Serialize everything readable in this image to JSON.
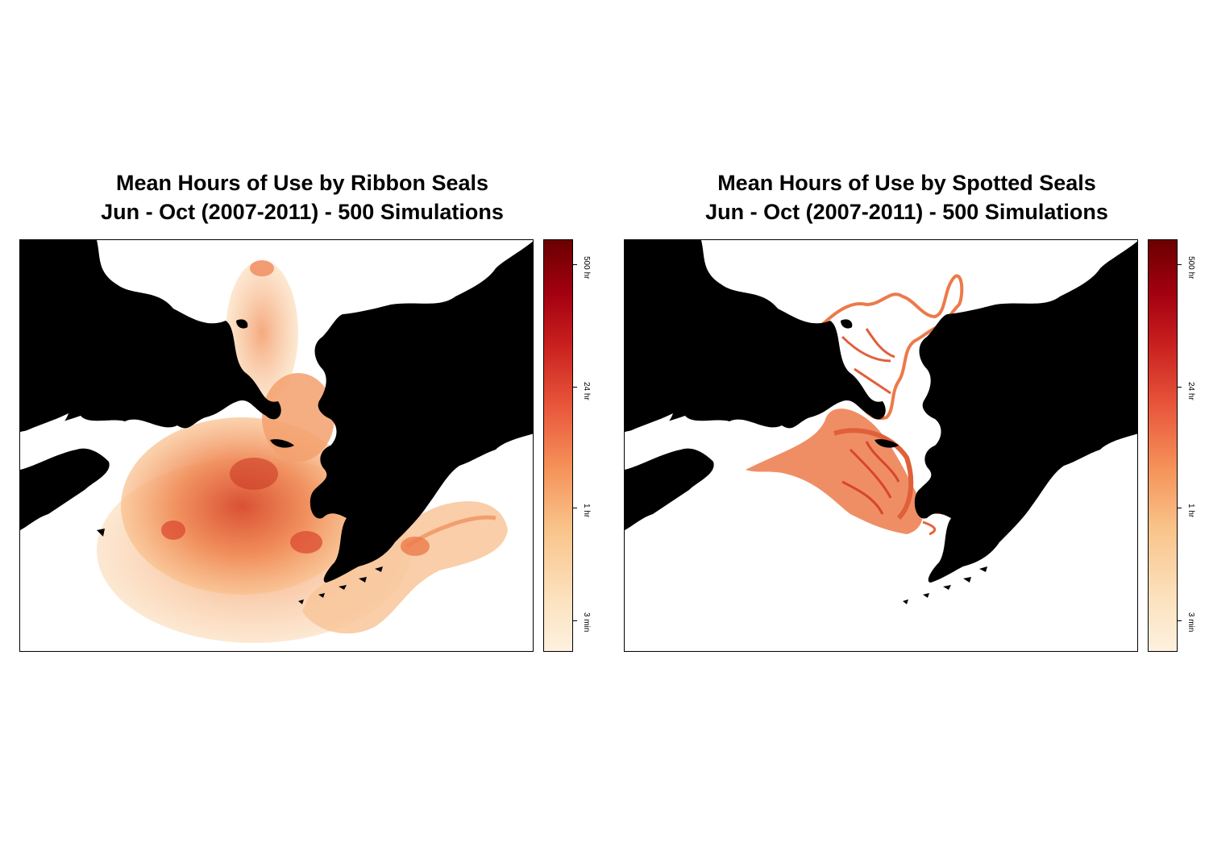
{
  "panels": [
    {
      "title_line1": "Mean Hours of Use by Ribbon Seals",
      "title_line2": "Jun - Oct (2007-2011) - 500 Simulations",
      "legend_ticks": [
        "500 hr",
        "24 hr",
        "1 hr",
        "3 min"
      ]
    },
    {
      "title_line1": "Mean Hours of Use by Spotted Seals",
      "title_line2": "Jun - Oct (2007-2011) - 500 Simulations",
      "legend_ticks": [
        "500 hr",
        "24 hr",
        "1 hr",
        "3 min"
      ]
    }
  ],
  "colors": {
    "land": "#000000",
    "water": "#ffffff",
    "scale_low": "#fdf1df",
    "scale_mid": "#f59058",
    "scale_high": "#6b0000"
  }
}
